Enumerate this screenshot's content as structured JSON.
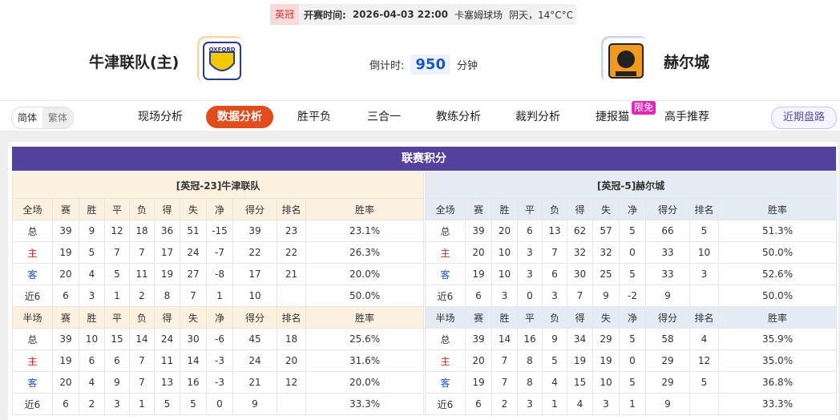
{
  "header": {
    "league": "英冠",
    "kickoff_label": "开赛时间:",
    "kickoff_time": "2026-04-03 22:00",
    "venue": "卡塞姆球场",
    "weather": "阴天，14°C°C",
    "home_team": "牛津联队(主)",
    "away_team": "赫尔城",
    "countdown_label": "倒计时:",
    "countdown": 950,
    "countdown_unit": "分钟"
  },
  "nav": {
    "languages": [
      "简体",
      "繁体"
    ],
    "tabs": [
      "现场分析",
      "数据分析",
      "胜平负",
      "三合一",
      "教练分析",
      "裁判分析",
      "捷报猫",
      "高手推荐"
    ],
    "badge": "限免",
    "right_button": "近期盘路"
  },
  "standings": {
    "title": "联赛积分",
    "columns": [
      "赛",
      "胜",
      "平",
      "负",
      "得",
      "失",
      "净",
      "得分",
      "排名",
      "胜率"
    ],
    "teams": [
      {
        "title": "[英冠-23]牛津联队",
        "blocks": [
          {
            "label": "全场",
            "rows": [
              [
                "总",
                39,
                9,
                12,
                18,
                36,
                51,
                -15,
                39,
                23,
                "23.1%"
              ],
              [
                "主",
                19,
                5,
                7,
                7,
                17,
                24,
                -7,
                22,
                22,
                "26.3%"
              ],
              [
                "客",
                20,
                4,
                5,
                11,
                19,
                27,
                -8,
                17,
                21,
                "20.0%"
              ],
              [
                "近6",
                6,
                3,
                1,
                2,
                8,
                7,
                1,
                10,
                null,
                "50.0%"
              ]
            ]
          },
          {
            "label": "半场",
            "rows": [
              [
                "总",
                39,
                10,
                15,
                14,
                24,
                30,
                -6,
                45,
                18,
                "25.6%"
              ],
              [
                "主",
                19,
                6,
                6,
                7,
                11,
                14,
                -3,
                24,
                20,
                "31.6%"
              ],
              [
                "客",
                20,
                4,
                9,
                7,
                13,
                16,
                -3,
                21,
                12,
                "20.0%"
              ],
              [
                "近6",
                6,
                2,
                3,
                1,
                5,
                5,
                0,
                9,
                null,
                "33.3%"
              ]
            ]
          }
        ]
      },
      {
        "title": "[英冠-5]赫尔城",
        "blocks": [
          {
            "label": "全场",
            "rows": [
              [
                "总",
                39,
                20,
                6,
                13,
                62,
                57,
                5,
                66,
                5,
                "51.3%"
              ],
              [
                "主",
                20,
                10,
                3,
                7,
                32,
                32,
                0,
                33,
                10,
                "50.0%"
              ],
              [
                "客",
                19,
                10,
                3,
                6,
                30,
                25,
                5,
                33,
                3,
                "52.6%"
              ],
              [
                "近6",
                6,
                3,
                0,
                3,
                7,
                9,
                -2,
                9,
                null,
                "50.0%"
              ]
            ]
          },
          {
            "label": "半场",
            "rows": [
              [
                "总",
                39,
                14,
                16,
                9,
                34,
                29,
                5,
                58,
                4,
                "35.9%"
              ],
              [
                "主",
                20,
                7,
                8,
                5,
                19,
                19,
                0,
                29,
                12,
                "35.0%"
              ],
              [
                "客",
                19,
                7,
                8,
                4,
                15,
                10,
                5,
                29,
                5,
                "36.8%"
              ],
              [
                "近6",
                6,
                2,
                3,
                1,
                4,
                3,
                1,
                9,
                null,
                "33.3%"
              ]
            ]
          }
        ]
      }
    ]
  }
}
